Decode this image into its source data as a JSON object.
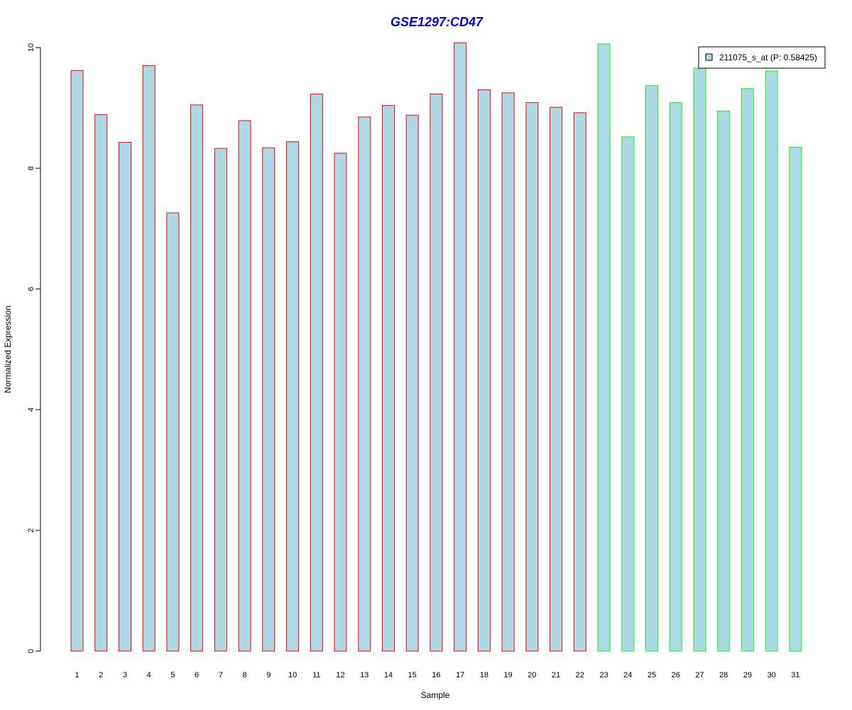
{
  "chart_data": {
    "type": "bar",
    "title": "GSE1297:CD47",
    "xlabel": "Sample",
    "ylabel": "Normalized Expression",
    "ylim": [
      0,
      10
    ],
    "yticks": [
      0,
      2,
      4,
      6,
      8,
      10
    ],
    "grid": false,
    "legend": {
      "placement": "top-right",
      "label": "211075_s_at (P: 0.58425)"
    },
    "categories": [
      "1",
      "2",
      "3",
      "4",
      "5",
      "6",
      "7",
      "8",
      "9",
      "10",
      "11",
      "12",
      "13",
      "14",
      "15",
      "16",
      "17",
      "18",
      "19",
      "20",
      "21",
      "22",
      "23",
      "24",
      "25",
      "26",
      "27",
      "28",
      "29",
      "30",
      "31"
    ],
    "values": [
      9.62,
      8.89,
      8.43,
      9.7,
      7.26,
      9.05,
      8.33,
      8.79,
      8.34,
      8.44,
      9.23,
      8.25,
      8.85,
      9.04,
      8.88,
      9.23,
      10.08,
      9.3,
      9.25,
      9.09,
      9.01,
      8.92,
      10.06,
      8.52,
      9.37,
      9.09,
      9.66,
      8.95,
      9.32,
      9.61,
      8.35
    ],
    "groups": [
      "control",
      "control",
      "control",
      "control",
      "control",
      "control",
      "control",
      "control",
      "control",
      "control",
      "control",
      "control",
      "control",
      "control",
      "control",
      "control",
      "control",
      "control",
      "control",
      "control",
      "control",
      "control",
      "case",
      "case",
      "case",
      "case",
      "case",
      "case",
      "case",
      "case",
      "case"
    ],
    "colors": {
      "bar_fill": "#add8e6",
      "control_border": "#ff0000",
      "case_border": "#00ff00",
      "title": "#0000cc"
    }
  }
}
